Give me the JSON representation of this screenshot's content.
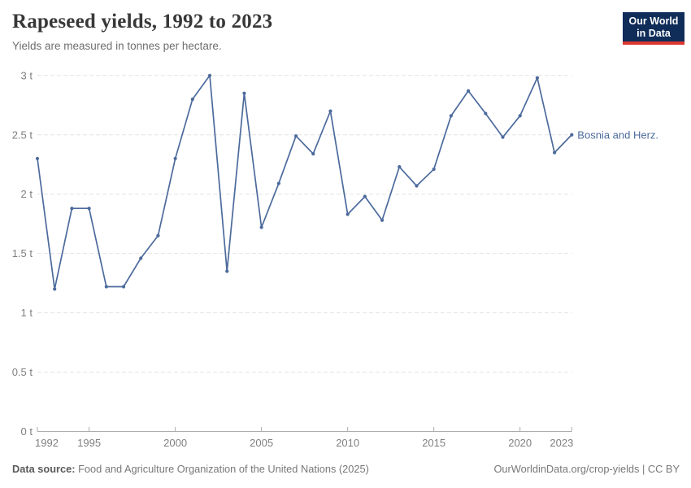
{
  "header": {
    "title": "Rapeseed yields, 1992 to 2023",
    "subtitle": "Yields are measured in tonnes per hectare."
  },
  "logo": {
    "line1": "Our World",
    "line2": "in Data"
  },
  "chart_data": {
    "type": "line",
    "title": "Rapeseed yields, 1992 to 2023",
    "ylabel": "tonnes per hectare",
    "unit": "t",
    "xlim": [
      1992,
      2023
    ],
    "ylim": [
      0,
      3
    ],
    "grid": "horizontal-dashed",
    "legend_position": "end-of-line-label",
    "x_ticks": [
      1992,
      1995,
      2000,
      2005,
      2010,
      2015,
      2020,
      2023
    ],
    "y_ticks": [
      0,
      0.5,
      1,
      1.5,
      2,
      2.5,
      3
    ],
    "y_tick_labels": [
      "0 t",
      "0.5 t",
      "1 t",
      "1.5 t",
      "2 t",
      "2.5 t",
      "3 t"
    ],
    "x": [
      1992,
      1993,
      1994,
      1995,
      1996,
      1997,
      1998,
      1999,
      2000,
      2001,
      2002,
      2003,
      2004,
      2005,
      2006,
      2007,
      2008,
      2009,
      2010,
      2011,
      2012,
      2013,
      2014,
      2015,
      2016,
      2017,
      2018,
      2019,
      2020,
      2021,
      2022,
      2023
    ],
    "series": [
      {
        "name": "Bosnia and Herz.",
        "color": "#4C6A9C",
        "values": [
          2.3,
          1.2,
          1.88,
          1.88,
          1.22,
          1.22,
          1.46,
          1.65,
          2.3,
          2.8,
          3.0,
          1.35,
          2.85,
          1.72,
          2.09,
          2.49,
          2.34,
          2.7,
          1.83,
          1.98,
          1.78,
          2.23,
          2.07,
          2.21,
          2.66,
          2.87,
          2.68,
          2.48,
          2.66,
          2.98,
          2.35,
          2.5
        ]
      }
    ]
  },
  "footer": {
    "source_label": "Data source:",
    "source_text": "Food and Agriculture Organization of the United Nations (2025)",
    "link_text": "OurWorldinData.org/crop-yields | CC BY"
  },
  "colors": {
    "accent_line": "#4C6A9C",
    "logo_bg": "#102d59",
    "logo_accent": "#dc3832",
    "grid": "#e4e4e4",
    "axis": "#adadad",
    "tick_text": "#7f7f7f",
    "title_text": "#383838",
    "subtitle_text": "#6e6e6e",
    "footer_text": "#787878"
  }
}
